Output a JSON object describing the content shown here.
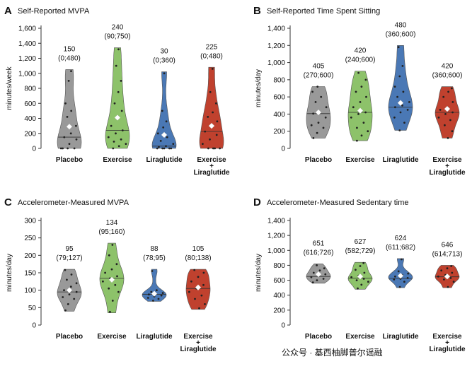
{
  "colors": {
    "placebo": "#999999",
    "exercise": "#8dc26a",
    "liraglutide": "#4a78b5",
    "combo": "#c0412e",
    "mean_marker": "#ffffff",
    "point": "#222222"
  },
  "watermark": "公众号 · 基西柚脚普尔谣融",
  "chart_data": [
    {
      "id": "A",
      "type": "violin",
      "letter": "A",
      "title": "Self-Reported MVPA",
      "ylabel": "minutes/week",
      "ylim": [
        0,
        1600
      ],
      "yticks": [
        "0",
        "200",
        "400",
        "600",
        "800",
        "1,000",
        "1,200",
        "1,400",
        "1,600"
      ],
      "ytick_values": [
        0,
        200,
        400,
        600,
        800,
        1000,
        1200,
        1400,
        1600
      ],
      "categories": [
        "Placebo",
        "Exercise",
        "Liraglutide",
        "Exercise\n+\nLiraglutide"
      ],
      "medians": [
        "150",
        "240",
        "30",
        "225"
      ],
      "iqr": [
        "(0;480)",
        "(90;750)",
        "(0;360)",
        "(0;480)"
      ],
      "series": [
        {
          "name": "Placebo",
          "median": 150,
          "mean": 290,
          "min": 0,
          "max": 1050,
          "points": [
            0,
            0,
            0,
            0,
            60,
            120,
            150,
            200,
            300,
            420,
            500,
            600,
            900,
            1030
          ]
        },
        {
          "name": "Exercise",
          "median": 240,
          "mean": 410,
          "min": 0,
          "max": 1340,
          "points": [
            0,
            30,
            60,
            90,
            120,
            150,
            200,
            240,
            300,
            400,
            500,
            600,
            750,
            900,
            1100,
            1320
          ]
        },
        {
          "name": "Liraglutide",
          "median": 30,
          "mean": 180,
          "min": 0,
          "max": 1020,
          "points": [
            0,
            0,
            0,
            0,
            0,
            20,
            30,
            60,
            100,
            150,
            200,
            280,
            360,
            500,
            1000
          ]
        },
        {
          "name": "Exercise + Liraglutide",
          "median": 225,
          "mean": 300,
          "min": 0,
          "max": 1080,
          "points": [
            0,
            0,
            0,
            0,
            60,
            120,
            180,
            225,
            300,
            360,
            420,
            480,
            600,
            750,
            1060
          ]
        }
      ]
    },
    {
      "id": "B",
      "type": "violin",
      "letter": "B",
      "title": "Self-Reported Time Spent Sitting",
      "ylabel": "minutes/day",
      "ylim": [
        0,
        1400
      ],
      "yticks": [
        "0",
        "200",
        "400",
        "600",
        "800",
        "1,000",
        "1,200",
        "1,400"
      ],
      "ytick_values": [
        0,
        200,
        400,
        600,
        800,
        1000,
        1200,
        1400
      ],
      "categories": [
        "Placebo",
        "Exercise",
        "Liraglutide",
        "Exercise\n+\nLiraglutide"
      ],
      "medians": [
        "405",
        "420",
        "480",
        "420"
      ],
      "iqr": [
        "(270;600)",
        "(240;600)",
        "(360;600)",
        "(360;600)"
      ],
      "series": [
        {
          "name": "Placebo",
          "median": 405,
          "mean": 420,
          "min": 120,
          "max": 720,
          "points": [
            120,
            180,
            240,
            270,
            300,
            360,
            405,
            420,
            480,
            540,
            600,
            660,
            720
          ]
        },
        {
          "name": "Exercise",
          "median": 420,
          "mean": 440,
          "min": 90,
          "max": 900,
          "points": [
            90,
            150,
            200,
            240,
            300,
            360,
            400,
            420,
            480,
            540,
            600,
            660,
            720,
            800,
            880
          ]
        },
        {
          "name": "Liraglutide",
          "median": 480,
          "mean": 530,
          "min": 210,
          "max": 1200,
          "points": [
            210,
            300,
            360,
            420,
            450,
            480,
            500,
            540,
            600,
            660,
            720,
            840,
            960,
            1180
          ]
        },
        {
          "name": "Exercise + Liraglutide",
          "median": 420,
          "mean": 460,
          "min": 120,
          "max": 720,
          "points": [
            120,
            200,
            270,
            330,
            360,
            400,
            420,
            450,
            480,
            540,
            600,
            660,
            700
          ]
        }
      ]
    },
    {
      "id": "C",
      "type": "violin",
      "letter": "C",
      "title": "Accelerometer-Measured MVPA",
      "ylabel": "minutes/day",
      "ylim": [
        0,
        300
      ],
      "yticks": [
        "0",
        "50",
        "100",
        "150",
        "200",
        "250",
        "300"
      ],
      "ytick_values": [
        0,
        50,
        100,
        150,
        200,
        250,
        300
      ],
      "categories": [
        "Placebo",
        "Exercise",
        "Liraglutide",
        "Exercise\n+\nLiraglutide"
      ],
      "medians": [
        "95",
        "134",
        "88",
        "105"
      ],
      "iqr": [
        "(79;127)",
        "(95;160)",
        "(78;95)",
        "(80;138)"
      ],
      "series": [
        {
          "name": "Placebo",
          "median": 95,
          "mean": 100,
          "min": 40,
          "max": 160,
          "points": [
            42,
            60,
            75,
            80,
            88,
            95,
            100,
            110,
            120,
            130,
            145,
            158
          ]
        },
        {
          "name": "Exercise",
          "median": 134,
          "mean": 130,
          "min": 35,
          "max": 235,
          "points": [
            38,
            70,
            95,
            105,
            115,
            125,
            134,
            140,
            150,
            160,
            175,
            200,
            230
          ]
        },
        {
          "name": "Liraglutide",
          "median": 88,
          "mean": 90,
          "min": 68,
          "max": 160,
          "points": [
            70,
            75,
            78,
            82,
            85,
            88,
            90,
            92,
            95,
            100,
            155
          ]
        },
        {
          "name": "Exercise + Liraglutide",
          "median": 105,
          "mean": 108,
          "min": 45,
          "max": 160,
          "points": [
            48,
            60,
            75,
            85,
            95,
            105,
            115,
            125,
            138,
            150,
            158
          ]
        }
      ]
    },
    {
      "id": "D",
      "type": "violin",
      "letter": "D",
      "title": "Accelerometer-Measured Sedentary time",
      "ylabel": "minutes/day",
      "ylim": [
        0,
        1400
      ],
      "yticks": [
        "0",
        "200",
        "400",
        "600",
        "800",
        "1,000",
        "1,200",
        "1,400"
      ],
      "ytick_values": [
        0,
        200,
        400,
        600,
        800,
        1000,
        1200,
        1400
      ],
      "categories": [
        "Placebo",
        "Exercise",
        "Liraglutide",
        "Exercise\n+\nLiraglutide"
      ],
      "medians": [
        "651",
        "627",
        "624",
        "646"
      ],
      "iqr": [
        "(616;726)",
        "(582;729)",
        "(611;682)",
        "(614;713)"
      ],
      "series": [
        {
          "name": "Placebo",
          "median": 651,
          "mean": 680,
          "min": 560,
          "max": 820,
          "points": [
            570,
            600,
            620,
            640,
            660,
            680,
            700,
            730,
            760,
            800
          ]
        },
        {
          "name": "Exercise",
          "median": 627,
          "mean": 650,
          "min": 480,
          "max": 840,
          "points": [
            490,
            540,
            580,
            600,
            620,
            640,
            660,
            700,
            740,
            790,
            830
          ]
        },
        {
          "name": "Liraglutide",
          "median": 624,
          "mean": 660,
          "min": 500,
          "max": 890,
          "points": [
            510,
            580,
            610,
            620,
            630,
            650,
            670,
            690,
            720,
            880
          ]
        },
        {
          "name": "Exercise + Liraglutide",
          "median": 646,
          "mean": 650,
          "min": 500,
          "max": 800,
          "points": [
            510,
            580,
            610,
            630,
            650,
            670,
            700,
            730,
            760,
            790
          ]
        }
      ]
    }
  ]
}
